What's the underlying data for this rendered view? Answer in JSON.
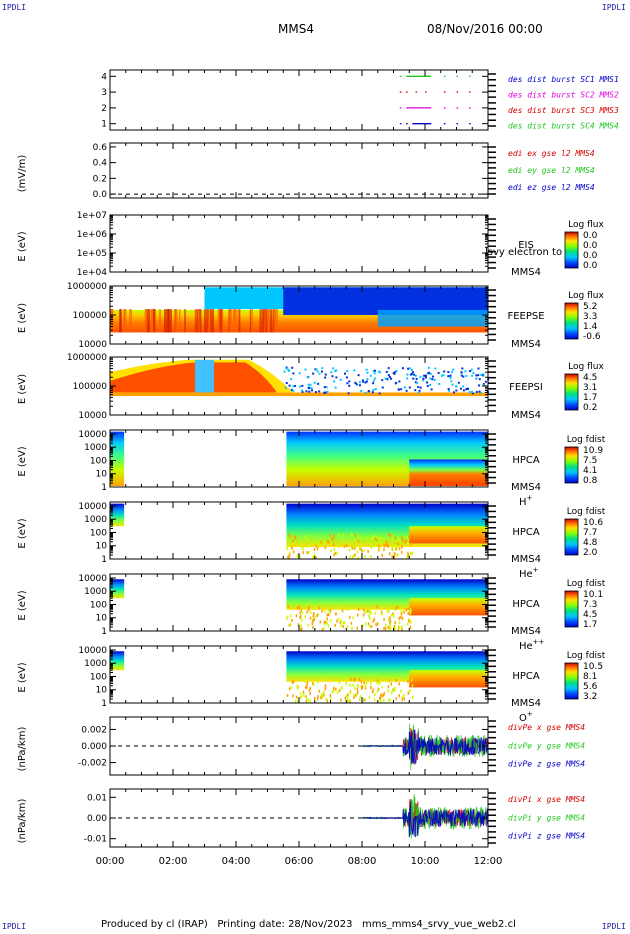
{
  "corner_left": "IPDLI",
  "corner_right": "IPDLI",
  "corner_bottom_left": "IPDLI",
  "corner_bottom_right": "IPDLI",
  "header": {
    "spacecraft": "MMS4",
    "datetime": "08/Nov/2016 00:00"
  },
  "footer": "Produced by cl (IRAP)   Printing date: 28/Nov/2023   mms_mms4_srvy_vue_web2.cl",
  "colors": {
    "red": "#d40000",
    "green": "#1ec81e",
    "blue": "#0000c8",
    "magenta": "#e000e0"
  },
  "chart_data": [
    {
      "type": "line",
      "id": "p1",
      "ylabel": "",
      "yticks": [
        4,
        3,
        2,
        1
      ],
      "ylim": [
        0.6,
        4.4
      ],
      "legend": [
        {
          "label": "des dist burst SC1 MMS1",
          "color": "#0000c8"
        },
        {
          "label": "des dist burst SC2 MMS2",
          "color": "#e000e0"
        },
        {
          "label": "des dist burst SC3 MMS3",
          "color": "#d40000"
        },
        {
          "label": "des dist burst SC4 MMS4",
          "color": "#1ec81e"
        }
      ],
      "series": [
        {
          "level": 4,
          "color": "#1ec81e",
          "segments": [
            [
              9.2,
              9.25
            ],
            [
              9.4,
              10.2
            ],
            [
              10.6,
              10.65
            ],
            [
              11.0,
              11.05
            ],
            [
              11.4,
              11.45
            ]
          ]
        },
        {
          "level": 3,
          "color": "#d40000",
          "segments": [
            [
              9.2,
              9.25
            ],
            [
              9.4,
              9.45
            ],
            [
              9.7,
              9.75
            ],
            [
              10.0,
              10.05
            ],
            [
              10.6,
              10.65
            ],
            [
              11.0,
              11.05
            ],
            [
              11.4,
              11.45
            ]
          ]
        },
        {
          "level": 2,
          "color": "#e000e0",
          "segments": [
            [
              9.2,
              9.25
            ],
            [
              9.4,
              10.2
            ],
            [
              10.6,
              10.65
            ],
            [
              11.0,
              11.05
            ],
            [
              11.4,
              11.45
            ]
          ]
        },
        {
          "level": 1,
          "color": "#0000c8",
          "segments": [
            [
              9.2,
              9.25
            ],
            [
              9.4,
              9.45
            ],
            [
              9.6,
              10.2
            ],
            [
              10.6,
              10.65
            ],
            [
              11.0,
              11.05
            ],
            [
              11.4,
              11.45
            ]
          ]
        }
      ]
    },
    {
      "type": "line",
      "id": "p2",
      "ylabel": "(mV/m)",
      "yticks": [
        "0.6",
        "0.4",
        "0.2",
        "0.0"
      ],
      "ytickvals": [
        0.6,
        0.4,
        0.2,
        0.0
      ],
      "ylim": [
        -0.05,
        0.65
      ],
      "legend": [
        {
          "label": "edi ex gse l2 MMS4",
          "color": "#d40000"
        },
        {
          "label": "edi ey gse l2 MMS4",
          "color": "#1ec81e"
        },
        {
          "label": "edi ez gse l2 MMS4",
          "color": "#0000c8"
        }
      ]
    },
    {
      "type": "heatmap",
      "id": "p3",
      "ylabel": "E (eV)",
      "yticks": [
        "1e+07",
        "1e+06",
        "1e+05",
        "1e+04"
      ],
      "ylog": true,
      "ylim": [
        10000,
        10000000
      ],
      "instrument": [
        "EIS",
        "MMS4"
      ],
      "overlay": "lsvy electron to",
      "colorbar": {
        "title": "Log flux",
        "labels": [
          "0.0",
          "0.0",
          "0.0",
          "0.0"
        ]
      },
      "empty": true
    },
    {
      "type": "heatmap",
      "id": "p4",
      "ylabel": "E (eV)",
      "yticks": [
        "1000000",
        "100000",
        "10000"
      ],
      "ylog": true,
      "ylim": [
        10000,
        1000000
      ],
      "instrument": [
        "FEEPSE",
        "MMS4"
      ],
      "colorbar": {
        "title": "Log flux",
        "labels": [
          "5.2",
          "3.3",
          "1.4",
          "-0.6"
        ]
      }
    },
    {
      "type": "heatmap",
      "id": "p5",
      "ylabel": "E (eV)",
      "yticks": [
        "1000000",
        "100000",
        "10000"
      ],
      "ylog": true,
      "ylim": [
        10000,
        1000000
      ],
      "instrument": [
        "FEEPSI",
        "MMS4"
      ],
      "colorbar": {
        "title": "Log flux",
        "labels": [
          "4.5",
          "3.1",
          "1.7",
          "0.2"
        ]
      }
    },
    {
      "type": "heatmap",
      "id": "p6",
      "ylabel": "E (eV)",
      "yticks": [
        "10000",
        "1000",
        "100",
        "10",
        "1"
      ],
      "ylog": true,
      "ylim": [
        1,
        20000
      ],
      "instrument": [
        "HPCA",
        "MMS4"
      ],
      "species": "H",
      "species_sup": "+",
      "colorbar": {
        "title": "Log fdist",
        "labels": [
          "10.9",
          "7.5",
          "4.1",
          "0.8"
        ]
      }
    },
    {
      "type": "heatmap",
      "id": "p7",
      "ylabel": "E (eV)",
      "yticks": [
        "10000",
        "1000",
        "100",
        "10",
        "1"
      ],
      "ylog": true,
      "ylim": [
        1,
        20000
      ],
      "instrument": [
        "HPCA",
        "MMS4"
      ],
      "species": "He",
      "species_sup": "+",
      "colorbar": {
        "title": "Log fdist",
        "labels": [
          "10.6",
          "7.7",
          "4.8",
          "2.0"
        ]
      }
    },
    {
      "type": "heatmap",
      "id": "p8",
      "ylabel": "E (eV)",
      "yticks": [
        "10000",
        "1000",
        "100",
        "10",
        "1"
      ],
      "ylog": true,
      "ylim": [
        1,
        20000
      ],
      "instrument": [
        "HPCA",
        "MMS4"
      ],
      "species": "He",
      "species_sup": "++",
      "colorbar": {
        "title": "Log fdist",
        "labels": [
          "10.1",
          "7.3",
          "4.5",
          "1.7"
        ]
      }
    },
    {
      "type": "heatmap",
      "id": "p9",
      "ylabel": "E (eV)",
      "yticks": [
        "10000",
        "1000",
        "100",
        "10",
        "1"
      ],
      "ylog": true,
      "ylim": [
        1,
        20000
      ],
      "instrument": [
        "HPCA",
        "MMS4"
      ],
      "species": "O",
      "species_sup": "+",
      "colorbar": {
        "title": "Log fdist",
        "labels": [
          "10.5",
          "8.1",
          "5.6",
          "3.2"
        ]
      }
    },
    {
      "type": "line",
      "id": "p10",
      "ylabel": "(nPa/km)",
      "yticks": [
        "0.002",
        "0.000",
        "-0.002"
      ],
      "ytickvals": [
        0.002,
        0.0,
        -0.002
      ],
      "ylim": [
        -0.0035,
        0.0035
      ],
      "legend": [
        {
          "label": "divPe x gse MMS4",
          "color": "#d40000"
        },
        {
          "label": "divPe y gse MMS4",
          "color": "#1ec81e"
        },
        {
          "label": "divPe z gse MMS4",
          "color": "#0000c8"
        }
      ]
    },
    {
      "type": "line",
      "id": "p11",
      "ylabel": "(nPa/km)",
      "yticks": [
        "0.01",
        "0.00",
        "-0.01"
      ],
      "ytickvals": [
        0.01,
        0.0,
        -0.01
      ],
      "ylim": [
        -0.014,
        0.014
      ],
      "legend": [
        {
          "label": "divPi x gse MMS4",
          "color": "#d40000"
        },
        {
          "label": "divPi y gse MMS4",
          "color": "#1ec81e"
        },
        {
          "label": "divPi z gse MMS4",
          "color": "#0000c8"
        }
      ]
    }
  ],
  "xaxis": {
    "xlim": [
      0,
      12
    ],
    "ticks": [
      "00:00",
      "02:00",
      "04:00",
      "06:00",
      "08:00",
      "10:00",
      "12:00"
    ],
    "tickvals": [
      0,
      2,
      4,
      6,
      8,
      10,
      12
    ]
  }
}
